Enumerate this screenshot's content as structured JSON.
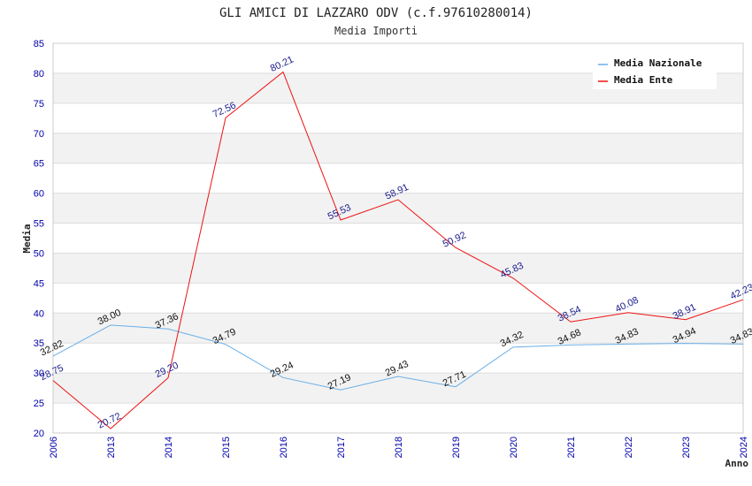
{
  "chart_data": {
    "type": "line",
    "title": "GLI AMICI DI LAZZARO ODV (c.f.97610280014)",
    "subtitle": "Media Importi",
    "xlabel": "Anno",
    "ylabel": "Media",
    "ylim": [
      20,
      85
    ],
    "yticks": [
      "20",
      "25",
      "30",
      "35",
      "40",
      "45",
      "50",
      "55",
      "60",
      "65",
      "70",
      "75",
      "80",
      "85"
    ],
    "categories": [
      "2006",
      "2013",
      "2014",
      "2015",
      "2016",
      "2017",
      "2018",
      "2019",
      "2020",
      "2021",
      "2022",
      "2023",
      "2024"
    ],
    "grid": true,
    "legend_position": "top-right",
    "series": [
      {
        "name": "Media Nazionale",
        "color": "#6aaee6",
        "values": [
          32.82,
          38.0,
          37.36,
          34.79,
          29.24,
          27.19,
          29.43,
          27.71,
          34.32,
          34.68,
          34.83,
          34.94,
          34.83
        ],
        "labels": [
          "32.82",
          "38.00",
          "37.36",
          "34.79",
          "29.24",
          "27.19",
          "29.43",
          "27.71",
          "34.32",
          "34.68",
          "34.83",
          "34.94",
          "34.83"
        ]
      },
      {
        "name": "Media Ente",
        "color": "#ee1111",
        "values": [
          28.75,
          20.72,
          29.2,
          72.56,
          80.21,
          55.53,
          58.91,
          50.92,
          45.83,
          38.54,
          40.08,
          38.91,
          42.23
        ],
        "labels": [
          "28.75",
          "20.72",
          "29.20",
          "72.56",
          "80.21",
          "55.53",
          "58.91",
          "50.92",
          "45.83",
          "38.54",
          "40.08",
          "38.91",
          "42.23"
        ]
      }
    ]
  }
}
